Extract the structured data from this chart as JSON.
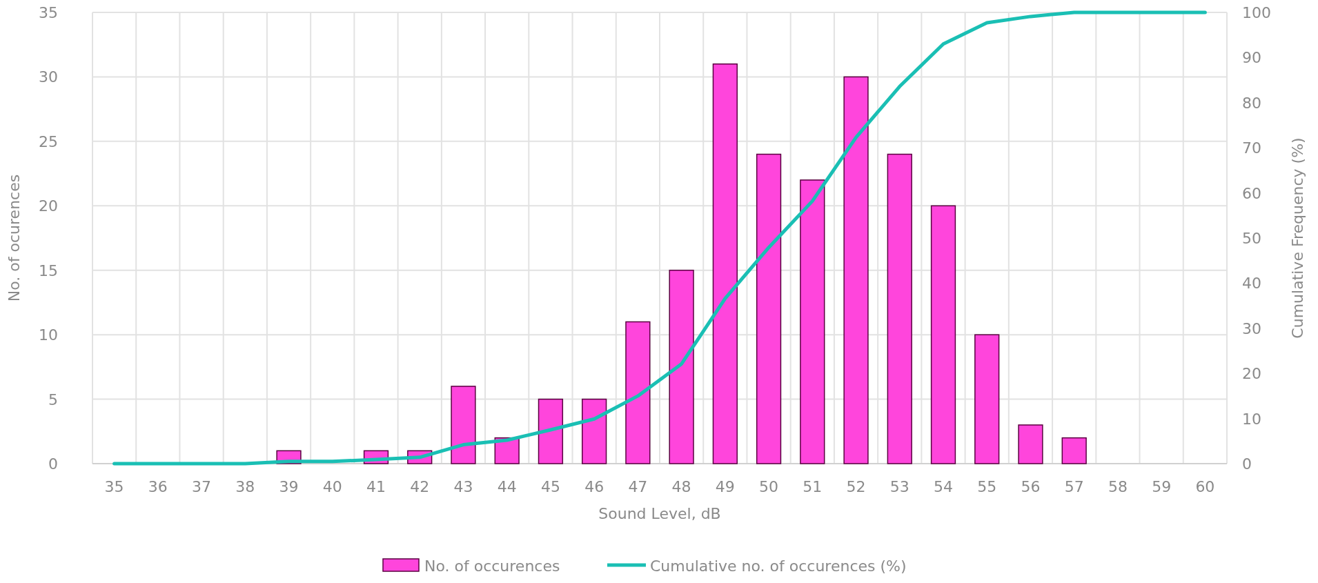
{
  "chart_data": {
    "type": "bar",
    "xlabel": "Sound Level, dB",
    "ylabel": "No. of ocurences",
    "y2label": "Cumulative Frequency (%)",
    "categories": [
      "35",
      "36",
      "37",
      "38",
      "39",
      "40",
      "41",
      "42",
      "43",
      "44",
      "45",
      "46",
      "47",
      "48",
      "49",
      "50",
      "51",
      "52",
      "53",
      "54",
      "55",
      "56",
      "57",
      "58",
      "59",
      "60"
    ],
    "series": [
      {
        "name": "No. of occurences",
        "color": "#ff45dc",
        "values": [
          0,
          0,
          0,
          0,
          1,
          0,
          1,
          1,
          6,
          2,
          5,
          5,
          11,
          15,
          31,
          24,
          22,
          30,
          24,
          20,
          10,
          3,
          2,
          0,
          0,
          0
        ]
      },
      {
        "name": "Cumulative no. of occurences (%)",
        "type": "line",
        "axis": "y2",
        "color": "#1abfb4",
        "values": [
          0,
          0,
          0,
          0,
          0.5,
          0.5,
          0.9,
          1.4,
          4.2,
          5.2,
          7.5,
          9.9,
          15,
          22.1,
          36.6,
          47.9,
          58.2,
          72.3,
          83.6,
          93,
          97.7,
          99.1,
          100,
          100,
          100,
          100
        ]
      }
    ],
    "ylim": [
      0,
      35
    ],
    "yticks": [
      0,
      5,
      10,
      15,
      20,
      25,
      30,
      35
    ],
    "y2lim": [
      0,
      100
    ],
    "y2ticks": [
      0,
      10,
      20,
      30,
      40,
      50,
      60,
      70,
      80,
      90,
      100
    ],
    "grid": true,
    "legend": "bottom",
    "marker": "none",
    "line_style": "solid"
  }
}
